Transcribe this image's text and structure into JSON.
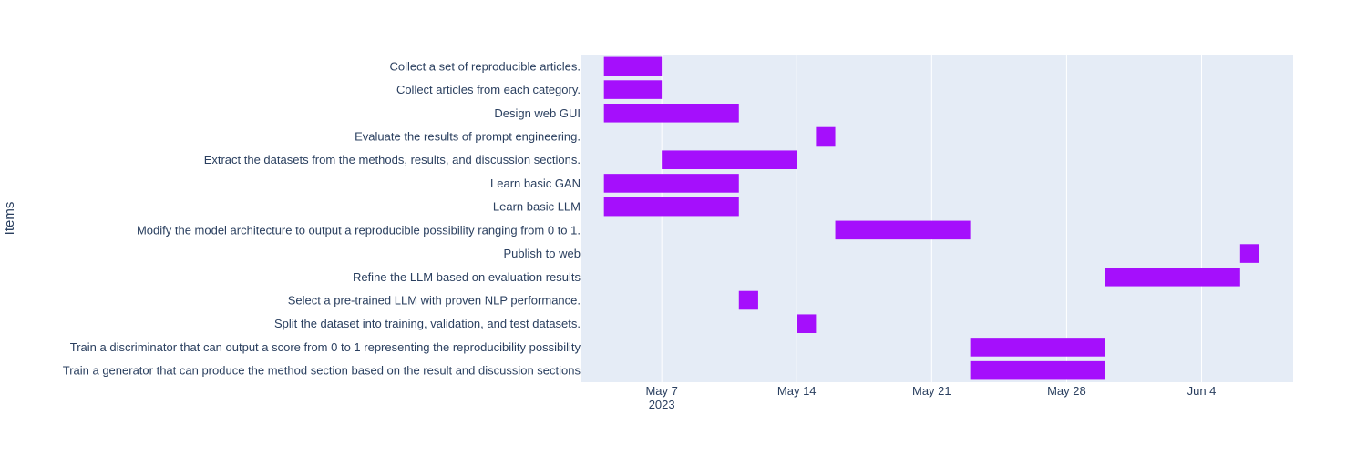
{
  "chart_data": {
    "type": "bar",
    "orientation": "horizontal",
    "title": "",
    "xlabel": "",
    "ylabel": "Items",
    "x_axis": "date",
    "xlim": [
      "2023-05-02T20:00",
      "2023-06-08T18:00"
    ],
    "x_ticks": [
      {
        "date": "2023-05-07",
        "label": "May 7",
        "sublabel": "2023"
      },
      {
        "date": "2023-05-14",
        "label": "May 14",
        "sublabel": ""
      },
      {
        "date": "2023-05-21",
        "label": "May 21",
        "sublabel": ""
      },
      {
        "date": "2023-05-28",
        "label": "May 28",
        "sublabel": ""
      },
      {
        "date": "2023-06-04",
        "label": "Jun 4",
        "sublabel": ""
      }
    ],
    "grid": true,
    "bar_color": "#a50ffc",
    "plot_bgcolor": "#e5ecf6",
    "tasks": [
      {
        "name": "Collect a set of reproducible articles.",
        "start": "2023-05-04",
        "end": "2023-05-07"
      },
      {
        "name": "Collect articles from each category.",
        "start": "2023-05-04",
        "end": "2023-05-07"
      },
      {
        "name": "Design web GUI",
        "start": "2023-05-04",
        "end": "2023-05-11"
      },
      {
        "name": "Evaluate the results of prompt engineering.",
        "start": "2023-05-15",
        "end": "2023-05-16"
      },
      {
        "name": "Extract the datasets from the methods, results, and discussion sections.",
        "start": "2023-05-07",
        "end": "2023-05-14"
      },
      {
        "name": "Learn basic GAN",
        "start": "2023-05-04",
        "end": "2023-05-11"
      },
      {
        "name": "Learn basic LLM",
        "start": "2023-05-04",
        "end": "2023-05-11"
      },
      {
        "name": "Modify the model architecture to output a reproducible possibility ranging from 0 to 1.",
        "start": "2023-05-16",
        "end": "2023-05-23"
      },
      {
        "name": "Publish to web",
        "start": "2023-06-06",
        "end": "2023-06-07"
      },
      {
        "name": "Refine the LLM based on evaluation results",
        "start": "2023-05-30",
        "end": "2023-06-06"
      },
      {
        "name": "Select a pre-trained LLM with proven NLP performance.",
        "start": "2023-05-11",
        "end": "2023-05-12"
      },
      {
        "name": "Split the dataset into training, validation, and test datasets.",
        "start": "2023-05-14",
        "end": "2023-05-15"
      },
      {
        "name": "Train a discriminator that can output a score from 0 to 1 representing the reproducibility possibility",
        "start": "2023-05-23",
        "end": "2023-05-30"
      },
      {
        "name": "Train a generator that can produce the method section based on the result and discussion sections",
        "start": "2023-05-23",
        "end": "2023-05-30"
      }
    ]
  }
}
